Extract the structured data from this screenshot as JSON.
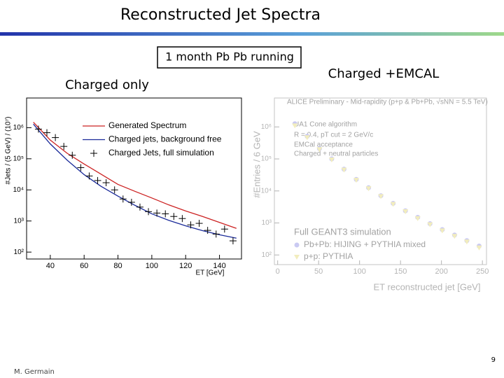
{
  "title": "Reconstructed Jet Spectra",
  "subtitle": "1 month Pb Pb running",
  "page_number": "9",
  "author": "M. Germain",
  "chart_data": [
    {
      "type": "line",
      "title": "Charged only",
      "x_label": "ET [GeV]",
      "y_label": "#Jets / (5 GeV) / (10⁷)",
      "log_y": true,
      "xlim": [
        26,
        153
      ],
      "ylim": [
        60,
        9000000
      ],
      "xticks": [
        40,
        60,
        80,
        100,
        120,
        140
      ],
      "yticks": [
        {
          "value": 100,
          "label": "10²"
        },
        {
          "value": 1000,
          "label": "10³"
        },
        {
          "value": 10000,
          "label": "10⁴"
        },
        {
          "value": 100000,
          "label": "10⁵"
        },
        {
          "value": 1000000,
          "label": "10⁶"
        }
      ],
      "series": [
        {
          "name": "Generated  Spectrum",
          "color": "#cc2222",
          "style": "line",
          "x": [
            30,
            40,
            50,
            60,
            70,
            80,
            90,
            100,
            110,
            120,
            130,
            140,
            150
          ],
          "values": [
            1500000,
            400000,
            150000,
            68000,
            32000,
            15000,
            9000,
            5500,
            3300,
            2100,
            1400,
            900,
            580
          ]
        },
        {
          "name": "Charged  jets,  background  free",
          "color": "#1a2a99",
          "style": "line",
          "x": [
            30,
            40,
            50,
            60,
            70,
            80,
            90,
            100,
            110,
            120,
            130,
            140,
            150
          ],
          "values": [
            1300000,
            300000,
            90000,
            31000,
            13000,
            6300,
            3200,
            1700,
            1050,
            700,
            490,
            360,
            280
          ]
        },
        {
          "name": "Charged  Jets,  full  simulation",
          "color": "#000000",
          "style": "cross",
          "x": [
            33,
            38,
            43,
            48,
            53,
            58,
            63,
            68,
            73,
            78,
            83,
            88,
            93,
            98,
            103,
            108,
            113,
            118,
            123,
            128,
            133,
            138,
            143,
            148
          ],
          "values": [
            900000,
            690000,
            480000,
            250000,
            130000,
            52000,
            28000,
            20000,
            17000,
            10000,
            5100,
            4000,
            2800,
            2000,
            1800,
            1700,
            1400,
            1200,
            750,
            840,
            500,
            380,
            550,
            230
          ]
        }
      ]
    },
    {
      "type": "scatter",
      "title": "Charged +EMCAL",
      "x_label": "ET reconstructed jet [GeV]",
      "y_label": "#Entries / 6 GeV",
      "log_y": true,
      "xlim": [
        -4,
        255
      ],
      "ylim": [
        50,
        8000000
      ],
      "xticks": [
        0,
        50,
        100,
        150,
        200,
        250
      ],
      "yticks": [
        {
          "value": 100,
          "label": "10²"
        },
        {
          "value": 1000,
          "label": "10³"
        },
        {
          "value": 10000,
          "label": "10⁴"
        },
        {
          "value": 100000,
          "label": "10⁵"
        },
        {
          "value": 1000000,
          "label": "10⁶"
        }
      ],
      "annotations": [
        "ALICE Preliminary - Mid-rapidity (p+p & Pb+Pb, √sNN = 5.5 TeV)",
        "UA1 Cone algorithm",
        "R = 0.4, pT cut = 2 GeV/c",
        "EMCal acceptance",
        "Charged + neutral particles",
        "Full GEANT3 simulation"
      ],
      "series": [
        {
          "name": "Pb+Pb: HIJING + PYTHIA mixed",
          "color": "#9f9fe8",
          "style": "circle",
          "x": [
            21,
            36,
            51,
            66,
            81,
            96,
            111,
            126,
            141,
            156,
            171,
            186,
            201,
            216,
            231,
            246
          ],
          "values": [
            1260000,
            510000,
            210000,
            100000,
            48000,
            23000,
            12600,
            7100,
            4100,
            2400,
            1500,
            950,
            620,
            420,
            280,
            190
          ]
        },
        {
          "name": "p+p: PYTHIA",
          "color": "#e8e08a",
          "style": "triangle",
          "x": [
            21,
            36,
            51,
            66,
            81,
            96,
            111,
            126,
            141,
            156,
            171,
            186,
            201,
            216,
            231,
            246
          ],
          "values": [
            1100000,
            470000,
            200000,
            95000,
            46000,
            22000,
            12000,
            6800,
            3900,
            2300,
            1400,
            900,
            580,
            390,
            260,
            170
          ]
        }
      ]
    }
  ]
}
